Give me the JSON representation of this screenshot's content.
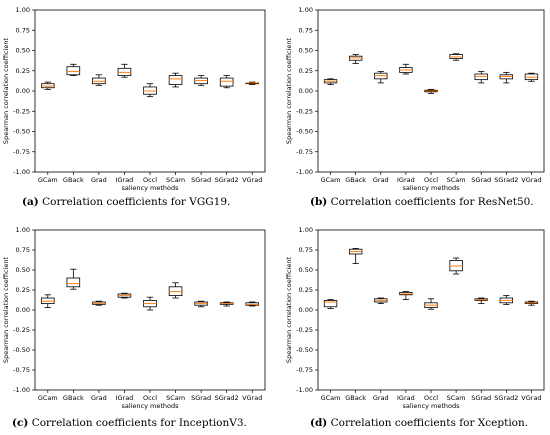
{
  "chart_data": [
    {
      "type": "box",
      "xlabel": "saliency methods",
      "ylabel": "Spearman correlation coefficient",
      "ylim": [
        -1.0,
        1.0
      ],
      "yticks": [
        "-1.00",
        "-0.75",
        "-0.50",
        "-0.25",
        "0.00",
        "0.25",
        "0.50",
        "0.75",
        "1.00"
      ],
      "categories": [
        "GCam",
        "GBack",
        "Grad",
        "IGrad",
        "Occl",
        "SCam",
        "SGrad",
        "SGrad2",
        "VGrad"
      ],
      "boxes": [
        {
          "min": 0.02,
          "q1": 0.04,
          "median": 0.06,
          "q3": 0.09,
          "max": 0.11
        },
        {
          "min": 0.19,
          "q1": 0.2,
          "median": 0.24,
          "q3": 0.3,
          "max": 0.33
        },
        {
          "min": 0.07,
          "q1": 0.09,
          "median": 0.12,
          "q3": 0.16,
          "max": 0.2
        },
        {
          "min": 0.17,
          "q1": 0.19,
          "median": 0.23,
          "q3": 0.28,
          "max": 0.33
        },
        {
          "min": -0.07,
          "q1": -0.04,
          "median": 0.0,
          "q3": 0.05,
          "max": 0.09
        },
        {
          "min": 0.05,
          "q1": 0.08,
          "median": 0.15,
          "q3": 0.19,
          "max": 0.22
        },
        {
          "min": 0.07,
          "q1": 0.09,
          "median": 0.13,
          "q3": 0.16,
          "max": 0.19
        },
        {
          "min": 0.04,
          "q1": 0.06,
          "median": 0.12,
          "q3": 0.16,
          "max": 0.19
        },
        {
          "min": 0.08,
          "q1": 0.09,
          "median": 0.1,
          "q3": 0.1,
          "max": 0.11
        }
      ],
      "caption_tag": "(a)",
      "caption_text": "Correlation coefficients for VGG19."
    },
    {
      "type": "box",
      "xlabel": "saliency methods",
      "ylabel": "Spearman correlation coefficient",
      "ylim": [
        -1.0,
        1.0
      ],
      "yticks": [
        "-1.00",
        "-0.75",
        "-0.50",
        "-0.25",
        "0.00",
        "0.25",
        "0.50",
        "0.75",
        "1.00"
      ],
      "categories": [
        "GCam",
        "GBack",
        "Grad",
        "IGrad",
        "Occl",
        "SCam",
        "SGrad",
        "SGrad2",
        "VGrad"
      ],
      "boxes": [
        {
          "min": 0.08,
          "q1": 0.1,
          "median": 0.12,
          "q3": 0.14,
          "max": 0.15
        },
        {
          "min": 0.34,
          "q1": 0.38,
          "median": 0.41,
          "q3": 0.43,
          "max": 0.45
        },
        {
          "min": 0.1,
          "q1": 0.15,
          "median": 0.19,
          "q3": 0.22,
          "max": 0.24
        },
        {
          "min": 0.21,
          "q1": 0.23,
          "median": 0.26,
          "q3": 0.29,
          "max": 0.33
        },
        {
          "min": -0.03,
          "q1": -0.01,
          "median": 0.0,
          "q3": 0.01,
          "max": 0.02
        },
        {
          "min": 0.38,
          "q1": 0.4,
          "median": 0.42,
          "q3": 0.45,
          "max": 0.46
        },
        {
          "min": 0.1,
          "q1": 0.14,
          "median": 0.18,
          "q3": 0.21,
          "max": 0.24
        },
        {
          "min": 0.1,
          "q1": 0.15,
          "median": 0.18,
          "q3": 0.2,
          "max": 0.23
        },
        {
          "min": 0.12,
          "q1": 0.14,
          "median": 0.17,
          "q3": 0.21,
          "max": 0.22
        }
      ],
      "caption_tag": "(b)",
      "caption_text": "Correlation coefficients for ResNet50."
    },
    {
      "type": "box",
      "xlabel": "saliency methods",
      "ylabel": "Spearman correlation coefficient",
      "ylim": [
        -1.0,
        1.0
      ],
      "yticks": [
        "-1.00",
        "-0.75",
        "-0.50",
        "-0.25",
        "0.00",
        "0.25",
        "0.50",
        "0.75",
        "1.00"
      ],
      "categories": [
        "GCam",
        "GBack",
        "Grad",
        "IGrad",
        "Occl",
        "SCam",
        "SGrad",
        "SGrad2",
        "VGrad"
      ],
      "boxes": [
        {
          "min": 0.03,
          "q1": 0.08,
          "median": 0.11,
          "q3": 0.15,
          "max": 0.19
        },
        {
          "min": 0.26,
          "q1": 0.29,
          "median": 0.33,
          "q3": 0.4,
          "max": 0.51
        },
        {
          "min": 0.06,
          "q1": 0.07,
          "median": 0.08,
          "q3": 0.1,
          "max": 0.11
        },
        {
          "min": 0.15,
          "q1": 0.16,
          "median": 0.18,
          "q3": 0.2,
          "max": 0.21
        },
        {
          "min": 0.0,
          "q1": 0.04,
          "median": 0.08,
          "q3": 0.12,
          "max": 0.16
        },
        {
          "min": 0.15,
          "q1": 0.18,
          "median": 0.23,
          "q3": 0.29,
          "max": 0.34
        },
        {
          "min": 0.04,
          "q1": 0.06,
          "median": 0.08,
          "q3": 0.1,
          "max": 0.11
        },
        {
          "min": 0.05,
          "q1": 0.07,
          "median": 0.08,
          "q3": 0.09,
          "max": 0.1
        },
        {
          "min": 0.05,
          "q1": 0.06,
          "median": 0.07,
          "q3": 0.09,
          "max": 0.1
        }
      ],
      "caption_tag": "(c)",
      "caption_text": "Correlation coefficients for InceptionV3."
    },
    {
      "type": "box",
      "xlabel": "saliency methods",
      "ylabel": "Spearman correlation coefficient",
      "ylim": [
        -1.0,
        1.0
      ],
      "yticks": [
        "-1.00",
        "-0.75",
        "-0.50",
        "-0.25",
        "0.00",
        "0.25",
        "0.50",
        "0.75",
        "1.00"
      ],
      "categories": [
        "GCam",
        "GBack",
        "Grad",
        "IGrad",
        "Occl",
        "SCam",
        "SGrad",
        "SGrad2",
        "VGrad"
      ],
      "boxes": [
        {
          "min": 0.02,
          "q1": 0.04,
          "median": 0.1,
          "q3": 0.12,
          "max": 0.13
        },
        {
          "min": 0.58,
          "q1": 0.7,
          "median": 0.73,
          "q3": 0.76,
          "max": 0.77
        },
        {
          "min": 0.08,
          "q1": 0.1,
          "median": 0.12,
          "q3": 0.14,
          "max": 0.15
        },
        {
          "min": 0.13,
          "q1": 0.19,
          "median": 0.2,
          "q3": 0.22,
          "max": 0.23
        },
        {
          "min": 0.01,
          "q1": 0.03,
          "median": 0.06,
          "q3": 0.09,
          "max": 0.14
        },
        {
          "min": 0.45,
          "q1": 0.49,
          "median": 0.55,
          "q3": 0.62,
          "max": 0.65
        },
        {
          "min": 0.08,
          "q1": 0.12,
          "median": 0.13,
          "q3": 0.14,
          "max": 0.15
        },
        {
          "min": 0.07,
          "q1": 0.09,
          "median": 0.12,
          "q3": 0.15,
          "max": 0.18
        },
        {
          "min": 0.06,
          "q1": 0.08,
          "median": 0.09,
          "q3": 0.1,
          "max": 0.11
        }
      ],
      "caption_tag": "(d)",
      "caption_text": "Correlation coefficients for Xception."
    }
  ],
  "colors": {
    "box": "#000000",
    "median": "#ff7f0e",
    "axis": "#000000"
  }
}
